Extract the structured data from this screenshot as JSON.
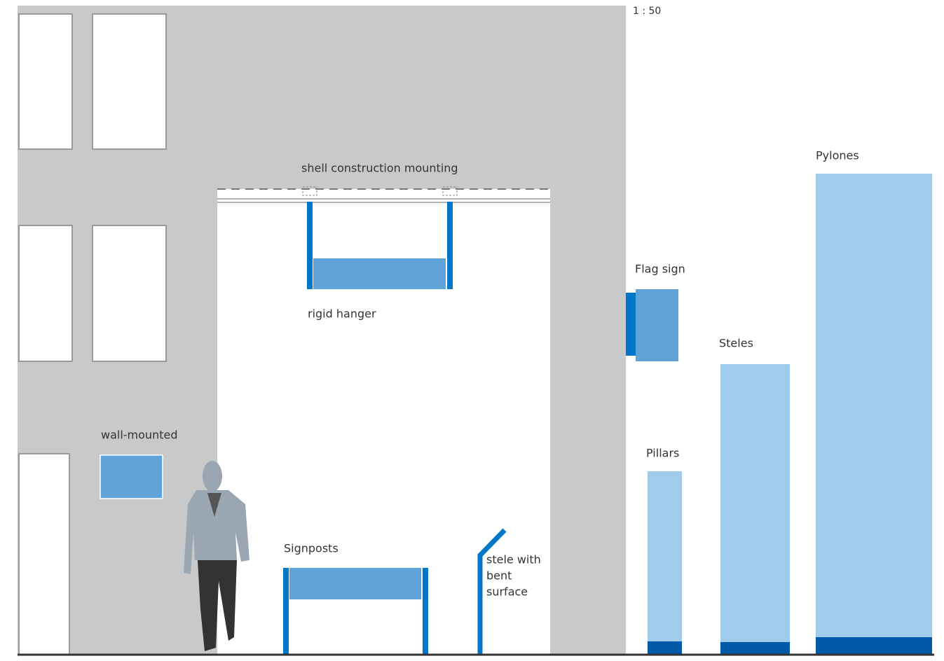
{
  "scale": "1 : 50",
  "labels": {
    "shell_mounting": "shell construction mounting",
    "rigid_hanger": "rigid hanger",
    "flag_sign": "Flag sign",
    "steles": "Steles",
    "pylones": "Pylones",
    "pillars": "Pillars",
    "wall_mounted": "wall-mounted",
    "signposts": "Signposts",
    "stele_bent": [
      "stele with",
      "bent",
      "surface"
    ]
  }
}
